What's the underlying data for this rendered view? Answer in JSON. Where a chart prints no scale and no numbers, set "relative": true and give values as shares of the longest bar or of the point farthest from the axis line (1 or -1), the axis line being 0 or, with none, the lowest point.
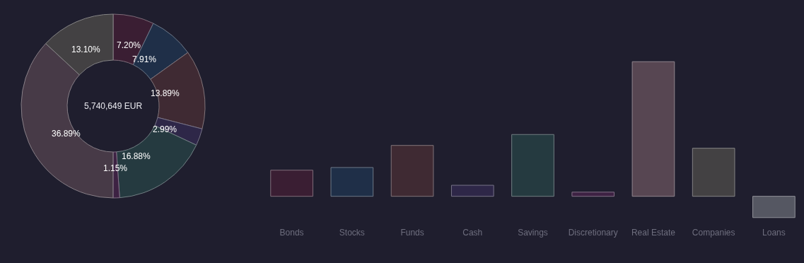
{
  "chart_data": [
    {
      "type": "donut",
      "annotations": [
        "5,740,649 EUR"
      ],
      "values": [
        7.2,
        7.91,
        13.89,
        2.99,
        16.88,
        1.15,
        36.89,
        13.1
      ],
      "value_labels": [
        "7.20%",
        "7.91%",
        "13.89%",
        "2.99%",
        "16.88%",
        "1.15%",
        "36.89%",
        "13.10%"
      ],
      "colors": [
        "#3a1e33",
        "#1f2f48",
        "#3f2a33",
        "#2e2748",
        "#253a40",
        "#3d2243",
        "#473a47",
        "#434143"
      ],
      "legend": false
    },
    {
      "type": "bar",
      "relative": true,
      "categories": [
        "Bonds",
        "Stocks",
        "Funds",
        "Cash",
        "Savings",
        "Discretionary",
        "Real Estate",
        "Companies",
        "Loans"
      ],
      "values": [
        0.194,
        0.214,
        0.378,
        0.082,
        0.459,
        0.031,
        1,
        0.357,
        -0.158
      ],
      "colors": [
        "#3a1e33",
        "#1f2f48",
        "#3f2a33",
        "#2e2748",
        "#253a40",
        "#3d2243",
        "#574652",
        "#434143",
        "#555762"
      ],
      "grid": false,
      "legend": false
    }
  ]
}
